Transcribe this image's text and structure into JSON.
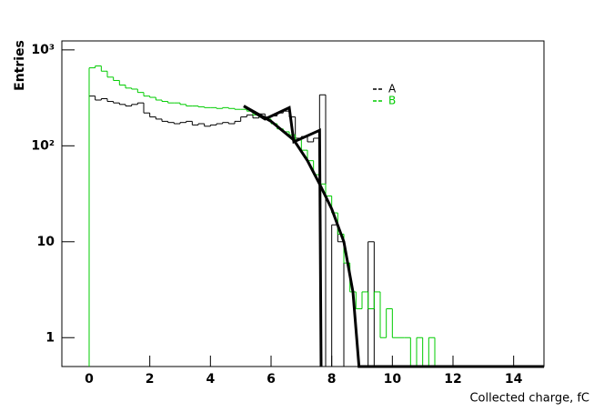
{
  "chart_data": {
    "type": "histogram",
    "xlabel": "Collected charge, fC",
    "ylabel": "Entries",
    "log_y": true,
    "xlim": [
      -0.9,
      15
    ],
    "ylim": [
      0.5,
      1240
    ],
    "xticks": [
      0,
      2,
      4,
      6,
      8,
      10,
      12,
      14
    ],
    "yticks": [
      {
        "value": 1000,
        "label": "10³"
      },
      {
        "value": 100,
        "label": "10²"
      },
      10,
      1
    ],
    "bins": [
      0,
      0.2,
      0.4,
      0.6,
      0.8,
      1,
      1.2,
      1.4,
      1.6,
      1.8,
      2,
      2.2,
      2.4,
      2.6,
      2.8,
      3,
      3.2,
      3.4,
      3.6,
      3.8,
      4,
      4.2,
      4.4,
      4.6,
      4.8,
      5,
      5.2,
      5.4,
      5.6,
      5.8,
      6,
      6.2,
      6.4,
      6.6,
      6.8,
      7,
      7.2,
      7.4,
      7.6,
      7.8,
      8,
      8.2,
      8.4,
      8.6,
      8.8,
      9,
      9.2,
      9.4,
      9.6,
      9.8,
      10,
      10.2,
      10.4,
      10.6,
      10.8,
      11,
      11.2,
      11.4,
      11.6,
      11.8,
      12
    ],
    "series": [
      {
        "name": "A",
        "color": "#000000",
        "values": [
          330,
          300,
          310,
          290,
          280,
          270,
          260,
          270,
          280,
          220,
          200,
          190,
          180,
          175,
          170,
          175,
          180,
          165,
          170,
          160,
          165,
          170,
          175,
          170,
          180,
          200,
          210,
          195,
          215,
          200,
          205,
          220,
          230,
          200,
          120,
          125,
          110,
          120,
          340,
          0,
          15,
          10,
          0,
          0,
          0,
          0,
          10,
          0,
          0,
          0,
          0,
          0,
          0,
          0,
          0,
          0,
          0,
          0,
          0,
          0
        ]
      },
      {
        "name": "B",
        "color": "#00cc00",
        "values": [
          650,
          680,
          600,
          520,
          480,
          430,
          400,
          390,
          360,
          330,
          320,
          300,
          290,
          280,
          280,
          270,
          260,
          260,
          255,
          250,
          250,
          245,
          250,
          245,
          240,
          240,
          230,
          210,
          200,
          190,
          170,
          150,
          140,
          130,
          115,
          90,
          70,
          50,
          40,
          30,
          20,
          12,
          6,
          3,
          2,
          3,
          2,
          3,
          1,
          2,
          1,
          1,
          1,
          0,
          1,
          0,
          1,
          0,
          0,
          0
        ]
      }
    ],
    "curves": [
      {
        "color": "#000000",
        "x": [
          5.1,
          5.8,
          6.6,
          6.75,
          7.6,
          7.65
        ],
        "values": [
          260,
          190,
          250,
          110,
          145,
          0.5
        ]
      },
      {
        "color": "#000000",
        "x": [
          5.1,
          6.0,
          6.75,
          7.2,
          7.6,
          8.0,
          8.4,
          8.7,
          8.9,
          15
        ],
        "values": [
          260,
          180,
          115,
          70,
          40,
          22,
          10,
          3,
          0.5,
          0.5
        ]
      }
    ]
  }
}
